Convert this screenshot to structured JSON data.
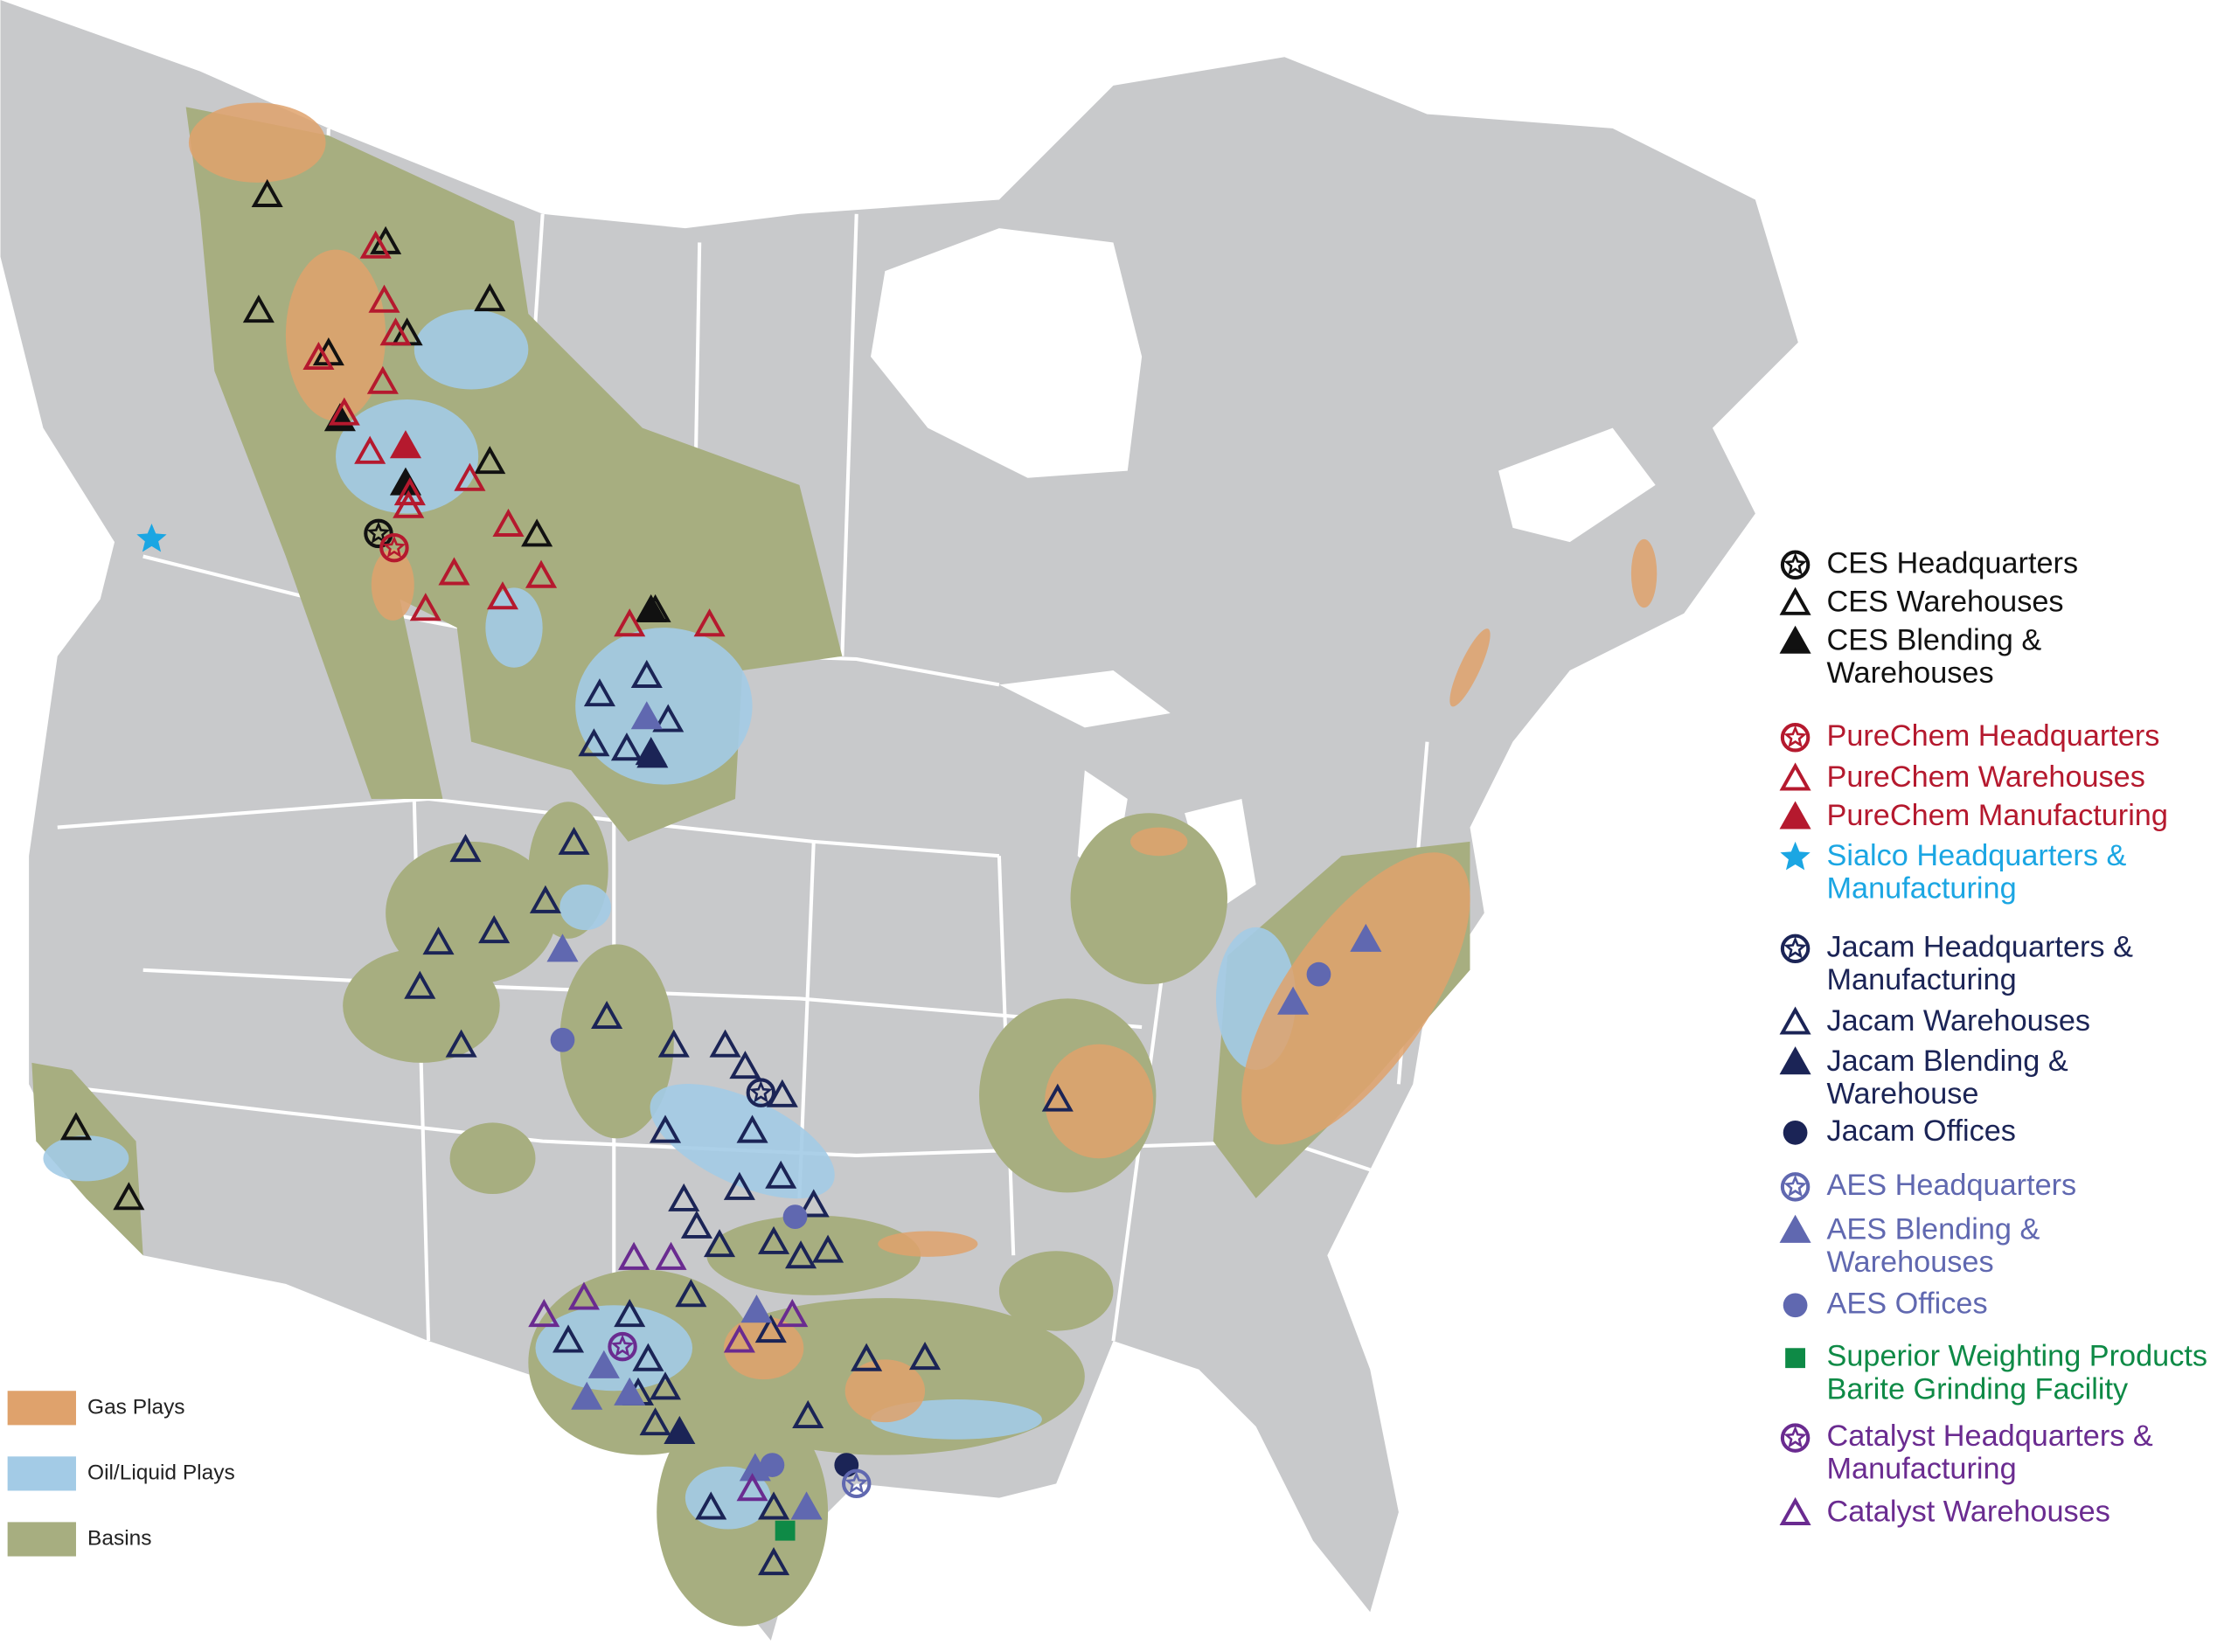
{
  "legend": {
    "items": [
      {
        "lines": [
          "CES Headquarters"
        ],
        "color": "#111111"
      },
      {
        "lines": [
          "CES Warehouses"
        ],
        "color": "#111111"
      },
      {
        "lines": [
          "CES Blending &",
          "Warehouses"
        ],
        "color": "#111111"
      },
      {
        "lines": [
          "PureChem Headquarters"
        ],
        "color": "#b5192e"
      },
      {
        "lines": [
          "PureChem Warehouses"
        ],
        "color": "#b5192e"
      },
      {
        "lines": [
          "PureChem Manufacturing"
        ],
        "color": "#b5192e"
      },
      {
        "lines": [
          "Sialco Headquarters &",
          "Manufacturing"
        ],
        "color": "#1ba6e3"
      },
      {
        "lines": [
          "Jacam Headquarters &",
          "Manufacturing"
        ],
        "color": "#1b2456"
      },
      {
        "lines": [
          "Jacam Warehouses"
        ],
        "color": "#1b2456"
      },
      {
        "lines": [
          "Jacam Blending &",
          "Warehouse"
        ],
        "color": "#1b2456"
      },
      {
        "lines": [
          "Jacam Offices"
        ],
        "color": "#1b2456"
      },
      {
        "lines": [
          "AES Headquarters"
        ],
        "color": "#6068b0"
      },
      {
        "lines": [
          "AES Blending &",
          "Warehouses"
        ],
        "color": "#6068b0"
      },
      {
        "lines": [
          "AES Offices"
        ],
        "color": "#6068b0"
      },
      {
        "lines": [
          "Superior Weighting Products",
          "Barite Grinding Facility"
        ],
        "color": "#0e8a46"
      },
      {
        "lines": [
          "Catalyst Headquarters &",
          "Manufacturing"
        ],
        "color": "#6a2b90"
      },
      {
        "lines": [
          "Catalyst Warehouses"
        ],
        "color": "#6a2b90"
      }
    ]
  },
  "map_legend": {
    "items": [
      {
        "label": "Gas Plays",
        "color": "#dfa26c"
      },
      {
        "label": "Oil/Liquid Plays",
        "color": "#a3cbe6"
      },
      {
        "label": "Basins",
        "color": "#a7ae80"
      }
    ]
  }
}
